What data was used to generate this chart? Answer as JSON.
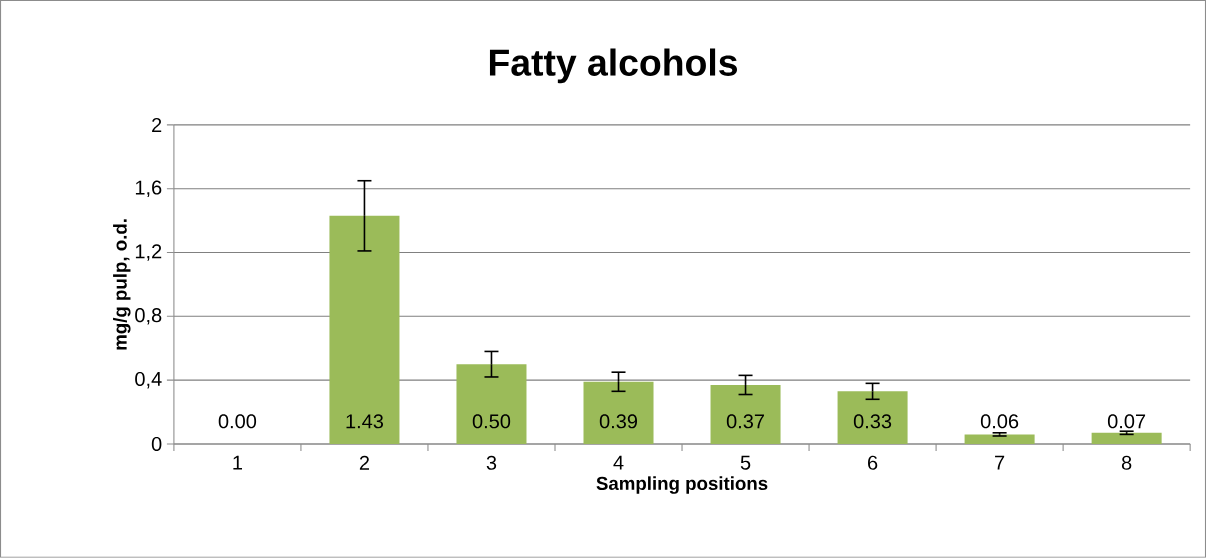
{
  "chart_data": {
    "type": "bar",
    "title": "Fatty alcohols",
    "xlabel": "Sampling positions",
    "ylabel": "mg/g pulp, o.d.",
    "categories": [
      "1",
      "2",
      "3",
      "4",
      "5",
      "6",
      "7",
      "8"
    ],
    "values": [
      0.0,
      1.43,
      0.5,
      0.39,
      0.37,
      0.33,
      0.06,
      0.07
    ],
    "errors": [
      null,
      0.22,
      0.08,
      0.06,
      0.06,
      0.05,
      0.01,
      0.01
    ],
    "value_labels": [
      "0.00",
      "1.43",
      "0.50",
      "0.39",
      "0.37",
      "0.33",
      "0.06",
      "0.07"
    ],
    "color": "#9bbb59",
    "ylim": [
      0,
      2
    ],
    "yticks": [
      0,
      {
        "value": 0.4,
        "label": "0,4"
      },
      {
        "value": 0.8,
        "label": "0,8"
      },
      {
        "value": 1.2,
        "label": "1,2"
      },
      {
        "value": 1.6,
        "label": "1,6"
      },
      2
    ],
    "grid": "y"
  }
}
